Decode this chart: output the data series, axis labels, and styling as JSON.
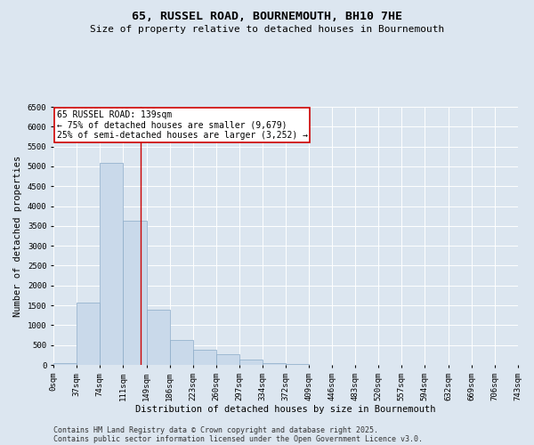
{
  "title_line1": "65, RUSSEL ROAD, BOURNEMOUTH, BH10 7HE",
  "title_line2": "Size of property relative to detached houses in Bournemouth",
  "xlabel": "Distribution of detached houses by size in Bournemouth",
  "ylabel": "Number of detached properties",
  "bar_color": "#c9d9ea",
  "bar_edge_color": "#8aaac8",
  "background_color": "#dce6f0",
  "grid_color": "#ffffff",
  "bins": [
    0,
    37,
    74,
    111,
    149,
    186,
    223,
    260,
    297,
    334,
    372,
    409,
    446,
    483,
    520,
    557,
    594,
    632,
    669,
    706,
    743
  ],
  "counts": [
    50,
    1580,
    5090,
    3620,
    1380,
    630,
    390,
    280,
    140,
    45,
    20,
    10,
    5,
    3,
    2,
    1,
    1,
    0,
    0,
    0
  ],
  "property_size": 139,
  "vline_color": "#cc0000",
  "annotation_text": "65 RUSSEL ROAD: 139sqm\n← 75% of detached houses are smaller (9,679)\n25% of semi-detached houses are larger (3,252) →",
  "annotation_box_facecolor": "#ffffff",
  "annotation_box_edgecolor": "#cc0000",
  "ylim": [
    0,
    6500
  ],
  "yticks": [
    0,
    500,
    1000,
    1500,
    2000,
    2500,
    3000,
    3500,
    4000,
    4500,
    5000,
    5500,
    6000,
    6500
  ],
  "footer_line1": "Contains HM Land Registry data © Crown copyright and database right 2025.",
  "footer_line2": "Contains public sector information licensed under the Open Government Licence v3.0.",
  "title_fontsize": 9.5,
  "subtitle_fontsize": 8,
  "tick_fontsize": 6.5,
  "label_fontsize": 7.5,
  "footer_fontsize": 6,
  "annot_fontsize": 7
}
